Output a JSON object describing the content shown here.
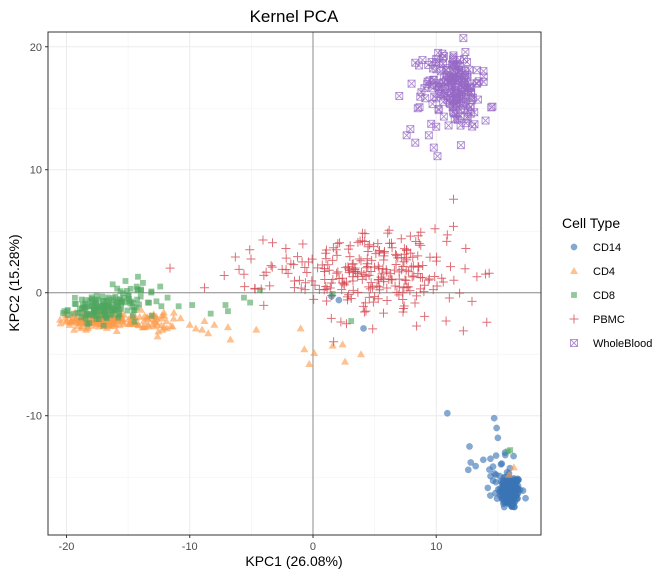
{
  "chart_data": {
    "type": "scatter",
    "title": "Kernel PCA",
    "xlabel": "KPC1 (26.08%)",
    "ylabel": "KPC2 (15.28%)",
    "xlim": [
      -21.5,
      18.5
    ],
    "ylim": [
      -19.7,
      21.2
    ],
    "x_ticks": [
      -20,
      -10,
      0,
      10
    ],
    "y_ticks": [
      -10,
      0,
      10,
      20
    ],
    "x_tick_labels": [
      "-20",
      "-10",
      "0",
      "10"
    ],
    "y_tick_labels": [
      "-10",
      "0",
      "10",
      "20"
    ],
    "grid": true,
    "zero_lines": true,
    "legend": {
      "title": "Cell Type",
      "position": "right"
    },
    "series": [
      {
        "name": "CD14",
        "shape": "circle",
        "color": "#3A74B5",
        "clusters": [
          {
            "n": 170,
            "cx": 16.0,
            "cy": -16.2,
            "sx": 0.45,
            "sy": 0.7
          },
          {
            "n": 25,
            "cx": 15.3,
            "cy": -14.8,
            "sx": 0.6,
            "sy": 1.2
          }
        ],
        "points": [
          [
            10.9,
            -9.8
          ],
          [
            14.7,
            -10.2
          ],
          [
            14.9,
            -11.0
          ],
          [
            15.0,
            -11.8
          ],
          [
            12.7,
            -12.5
          ],
          [
            12.8,
            -13.8
          ],
          [
            13.2,
            -14.1
          ],
          [
            12.6,
            -14.4
          ],
          [
            1.5,
            -0.3
          ],
          [
            2.1,
            -0.6
          ],
          [
            4.1,
            -2.9
          ],
          [
            15.6,
            -13.2
          ],
          [
            15.9,
            -14.7
          ],
          [
            14.4,
            -13.5
          ]
        ]
      },
      {
        "name": "CD4",
        "shape": "triangle",
        "color": "#FE9B4B",
        "clusters": [
          {
            "n": 150,
            "cx": -17.5,
            "cy": -2.2,
            "sx": 1.2,
            "sy": 0.35
          },
          {
            "n": 55,
            "cx": -13.8,
            "cy": -2.4,
            "sx": 1.3,
            "sy": 0.4
          }
        ],
        "points": [
          [
            -9.5,
            -2.9
          ],
          [
            -9.0,
            -3.0
          ],
          [
            -8.8,
            -2.3
          ],
          [
            -8.0,
            -2.6
          ],
          [
            -6.9,
            -2.8
          ],
          [
            -6.7,
            -3.8
          ],
          [
            -4.6,
            -3.0
          ],
          [
            -1.0,
            -2.9
          ],
          [
            -0.7,
            -4.6
          ],
          [
            1.6,
            -4.3
          ],
          [
            2.4,
            -4.2
          ],
          [
            0.1,
            -4.9
          ],
          [
            -0.3,
            -5.8
          ],
          [
            3.9,
            -5.0
          ],
          [
            2.6,
            -5.6
          ],
          [
            -10.0,
            -2.6
          ],
          [
            -11.3,
            -2.1
          ],
          [
            -12.1,
            -1.6
          ],
          [
            -8.5,
            -3.3
          ],
          [
            16.3,
            -14.2
          ],
          [
            15.9,
            -14.8
          ]
        ]
      },
      {
        "name": "CD8",
        "shape": "square",
        "color": "#4FA75F",
        "clusters": [
          {
            "n": 130,
            "cx": -17.0,
            "cy": -1.3,
            "sx": 1.4,
            "sy": 0.5
          },
          {
            "n": 25,
            "cx": -14.8,
            "cy": -0.3,
            "sx": 0.8,
            "sy": 0.6
          }
        ],
        "points": [
          [
            -13.8,
            0.8
          ],
          [
            -14.2,
            1.3
          ],
          [
            -14.3,
            0.5
          ],
          [
            -13.1,
            0.1
          ],
          [
            -12.7,
            -0.7
          ],
          [
            -12.3,
            -1.1
          ],
          [
            -10.9,
            -1.1
          ],
          [
            -9.8,
            -1.0
          ],
          [
            -8.3,
            -1.7
          ],
          [
            -7.1,
            -1.0
          ],
          [
            -6.9,
            -1.5
          ],
          [
            -5.6,
            -0.4
          ],
          [
            -4.3,
            0.2
          ],
          [
            -5.1,
            -0.8
          ],
          [
            -13.4,
            -0.8
          ],
          [
            3.1,
            -2.3
          ],
          [
            1.6,
            -0.1
          ],
          [
            16.0,
            -12.8
          ],
          [
            15.8,
            -12.9
          ],
          [
            -11.8,
            -0.4
          ]
        ]
      },
      {
        "name": "PBMC",
        "shape": "plus",
        "color": "#D33F49",
        "clusters": [
          {
            "n": 170,
            "cx": 3.5,
            "cy": 1.8,
            "sx": 3.6,
            "sy": 1.5
          },
          {
            "n": 70,
            "cx": 6.5,
            "cy": 1.0,
            "sx": 2.4,
            "sy": 1.6
          }
        ],
        "points": [
          [
            -11.6,
            2.0
          ],
          [
            -8.8,
            0.4
          ],
          [
            -7.2,
            1.4
          ],
          [
            -6.3,
            2.9
          ],
          [
            -6.0,
            1.9
          ],
          [
            -5.6,
            1.5
          ],
          [
            -4.7,
            0.3
          ],
          [
            -4.2,
            0.3
          ],
          [
            -3.4,
            2.2
          ],
          [
            -2.5,
            1.9
          ],
          [
            -2.2,
            3.6
          ],
          [
            -1.1,
            1.0
          ],
          [
            11.4,
            7.6
          ],
          [
            10.8,
            -2.3
          ],
          [
            14.1,
            -2.4
          ],
          [
            12.2,
            -3.1
          ],
          [
            12.9,
            -0.7
          ],
          [
            13.3,
            1.3
          ],
          [
            10.9,
            4.7
          ],
          [
            9.9,
            5.2
          ],
          [
            7.9,
            4.6
          ],
          [
            7.6,
            3.5
          ],
          [
            8.5,
            3.0
          ],
          [
            11.4,
            5.4
          ],
          [
            12.4,
            3.6
          ]
        ]
      },
      {
        "name": "WholeBlood",
        "shape": "boxx",
        "color": "#9668C4",
        "clusters": [
          {
            "n": 140,
            "cx": 11.4,
            "cy": 17.2,
            "sx": 1.1,
            "sy": 1.3
          },
          {
            "n": 40,
            "cx": 11.8,
            "cy": 15.3,
            "sx": 1.2,
            "sy": 1.0
          }
        ],
        "points": [
          [
            8.3,
            18.7
          ],
          [
            8.0,
            17.0
          ],
          [
            7.0,
            16.0
          ],
          [
            8.5,
            15.0
          ],
          [
            7.9,
            13.3
          ],
          [
            7.6,
            12.8
          ],
          [
            8.3,
            12.2
          ],
          [
            9.4,
            12.8
          ],
          [
            9.8,
            11.8
          ],
          [
            10.1,
            11.1
          ],
          [
            10.0,
            13.5
          ],
          [
            11.0,
            13.6
          ],
          [
            12.0,
            12.0
          ],
          [
            13.1,
            13.7
          ],
          [
            14.0,
            14.0
          ],
          [
            12.2,
            20.7
          ],
          [
            10.0,
            19.0
          ],
          [
            8.8,
            16.3
          ]
        ]
      }
    ]
  }
}
